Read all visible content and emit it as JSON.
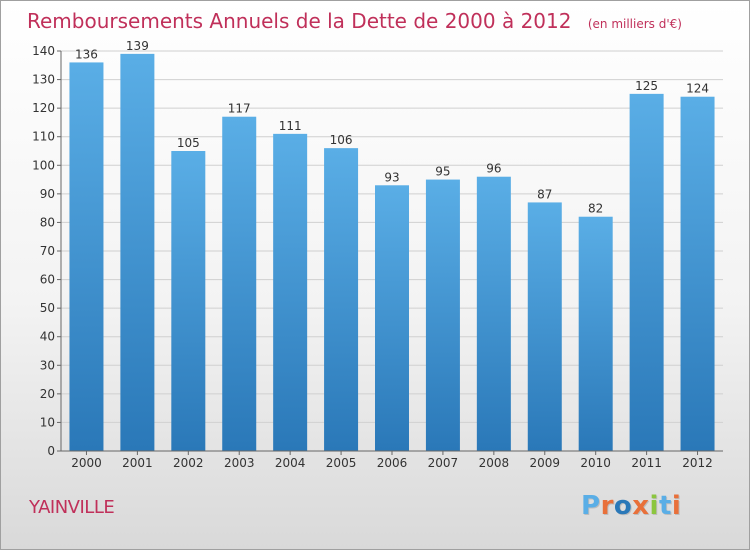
{
  "chart_data": {
    "type": "bar",
    "title": "Remboursements Annuels de la Dette de 2000 à 2012",
    "unit_label": "(en milliers d'€)",
    "categories": [
      "2000",
      "2001",
      "2002",
      "2003",
      "2004",
      "2005",
      "2006",
      "2007",
      "2008",
      "2009",
      "2010",
      "2011",
      "2012"
    ],
    "values": [
      136,
      139,
      105,
      117,
      111,
      106,
      93,
      95,
      96,
      87,
      82,
      125,
      124
    ],
    "ylim": [
      0,
      140
    ],
    "yticks": [
      0,
      10,
      20,
      30,
      40,
      50,
      60,
      70,
      80,
      90,
      100,
      110,
      120,
      130,
      140
    ],
    "grid": true,
    "xlabel": "",
    "ylabel": ""
  },
  "location": "YAINVILLE",
  "brand": "Proxiti",
  "colors": {
    "title": "#c0305a",
    "bar_top": "#5aaee6",
    "bar_bottom": "#2a78b8",
    "grid": "#d0d0d0",
    "brand_letters": [
      "#5aaee6",
      "#e8703a",
      "#2a78b8",
      "#e8703a",
      "#8cc63f",
      "#5aaee6",
      "#e8703a"
    ]
  }
}
